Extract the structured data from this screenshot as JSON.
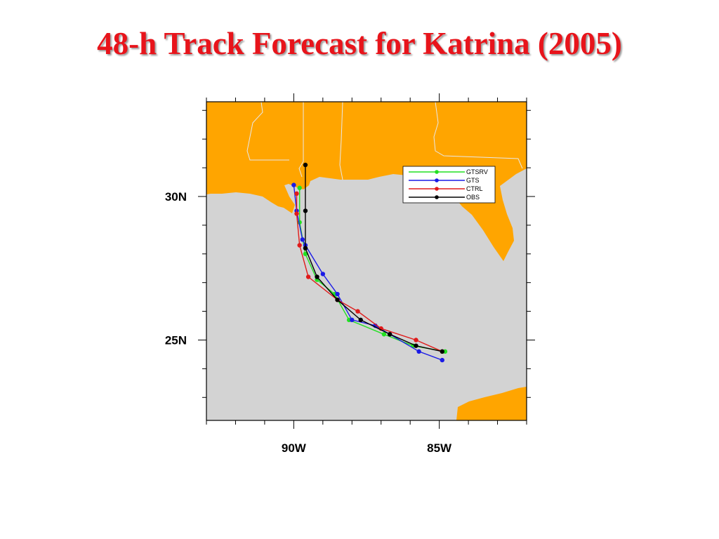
{
  "title": "48-h Track Forecast for Katrina (2005)",
  "colors": {
    "land": "#ffa500",
    "ocean": "#d3d3d3",
    "border": "#e8e8e8",
    "title": "#e8141b"
  },
  "chart_data": {
    "type": "line",
    "title": "48-h Track Forecast for Katrina (2005)",
    "xlabel": "",
    "ylabel": "",
    "xlim": [
      -93,
      -82
    ],
    "ylim": [
      22.2,
      33.3
    ],
    "x_ticks": [
      -90,
      -85
    ],
    "x_tick_labels": [
      "90W",
      "85W"
    ],
    "y_ticks": [
      30,
      25
    ],
    "y_tick_labels": [
      "30N",
      "25N"
    ],
    "grid": false,
    "legend": "top-right",
    "series": [
      {
        "name": "GTSRV",
        "color": "#22e022",
        "points": [
          [
            -84.8,
            24.6
          ],
          [
            -85.9,
            24.8
          ],
          [
            -86.9,
            25.2
          ],
          [
            -88.1,
            25.7
          ],
          [
            -88.6,
            26.6
          ],
          [
            -89.2,
            27.1
          ],
          [
            -89.6,
            28.0
          ],
          [
            -89.8,
            29.1
          ],
          [
            -89.8,
            30.3
          ]
        ]
      },
      {
        "name": "GTS",
        "color": "#1a1ae6",
        "points": [
          [
            -84.9,
            24.3
          ],
          [
            -85.7,
            24.6
          ],
          [
            -86.7,
            25.2
          ],
          [
            -87.2,
            25.5
          ],
          [
            -88.0,
            25.7
          ],
          [
            -88.5,
            26.6
          ],
          [
            -89.0,
            27.3
          ],
          [
            -89.6,
            28.3
          ],
          [
            -89.7,
            28.5
          ],
          [
            -89.9,
            29.5
          ],
          [
            -90.0,
            30.4
          ]
        ]
      },
      {
        "name": "CTRL",
        "color": "#e01a1a",
        "points": [
          [
            -84.9,
            24.6
          ],
          [
            -85.8,
            25.0
          ],
          [
            -87.0,
            25.4
          ],
          [
            -87.8,
            26.0
          ],
          [
            -88.5,
            26.4
          ],
          [
            -89.5,
            27.2
          ],
          [
            -89.8,
            28.3
          ],
          [
            -89.9,
            29.4
          ],
          [
            -89.9,
            30.1
          ]
        ]
      },
      {
        "name": "OBS",
        "color": "#000000",
        "points": [
          [
            -84.9,
            24.6
          ],
          [
            -85.8,
            24.8
          ],
          [
            -86.7,
            25.2
          ],
          [
            -87.7,
            25.7
          ],
          [
            -88.5,
            26.4
          ],
          [
            -89.2,
            27.2
          ],
          [
            -89.6,
            28.2
          ],
          [
            -89.6,
            29.5
          ],
          [
            -89.6,
            31.1
          ]
        ]
      }
    ]
  }
}
